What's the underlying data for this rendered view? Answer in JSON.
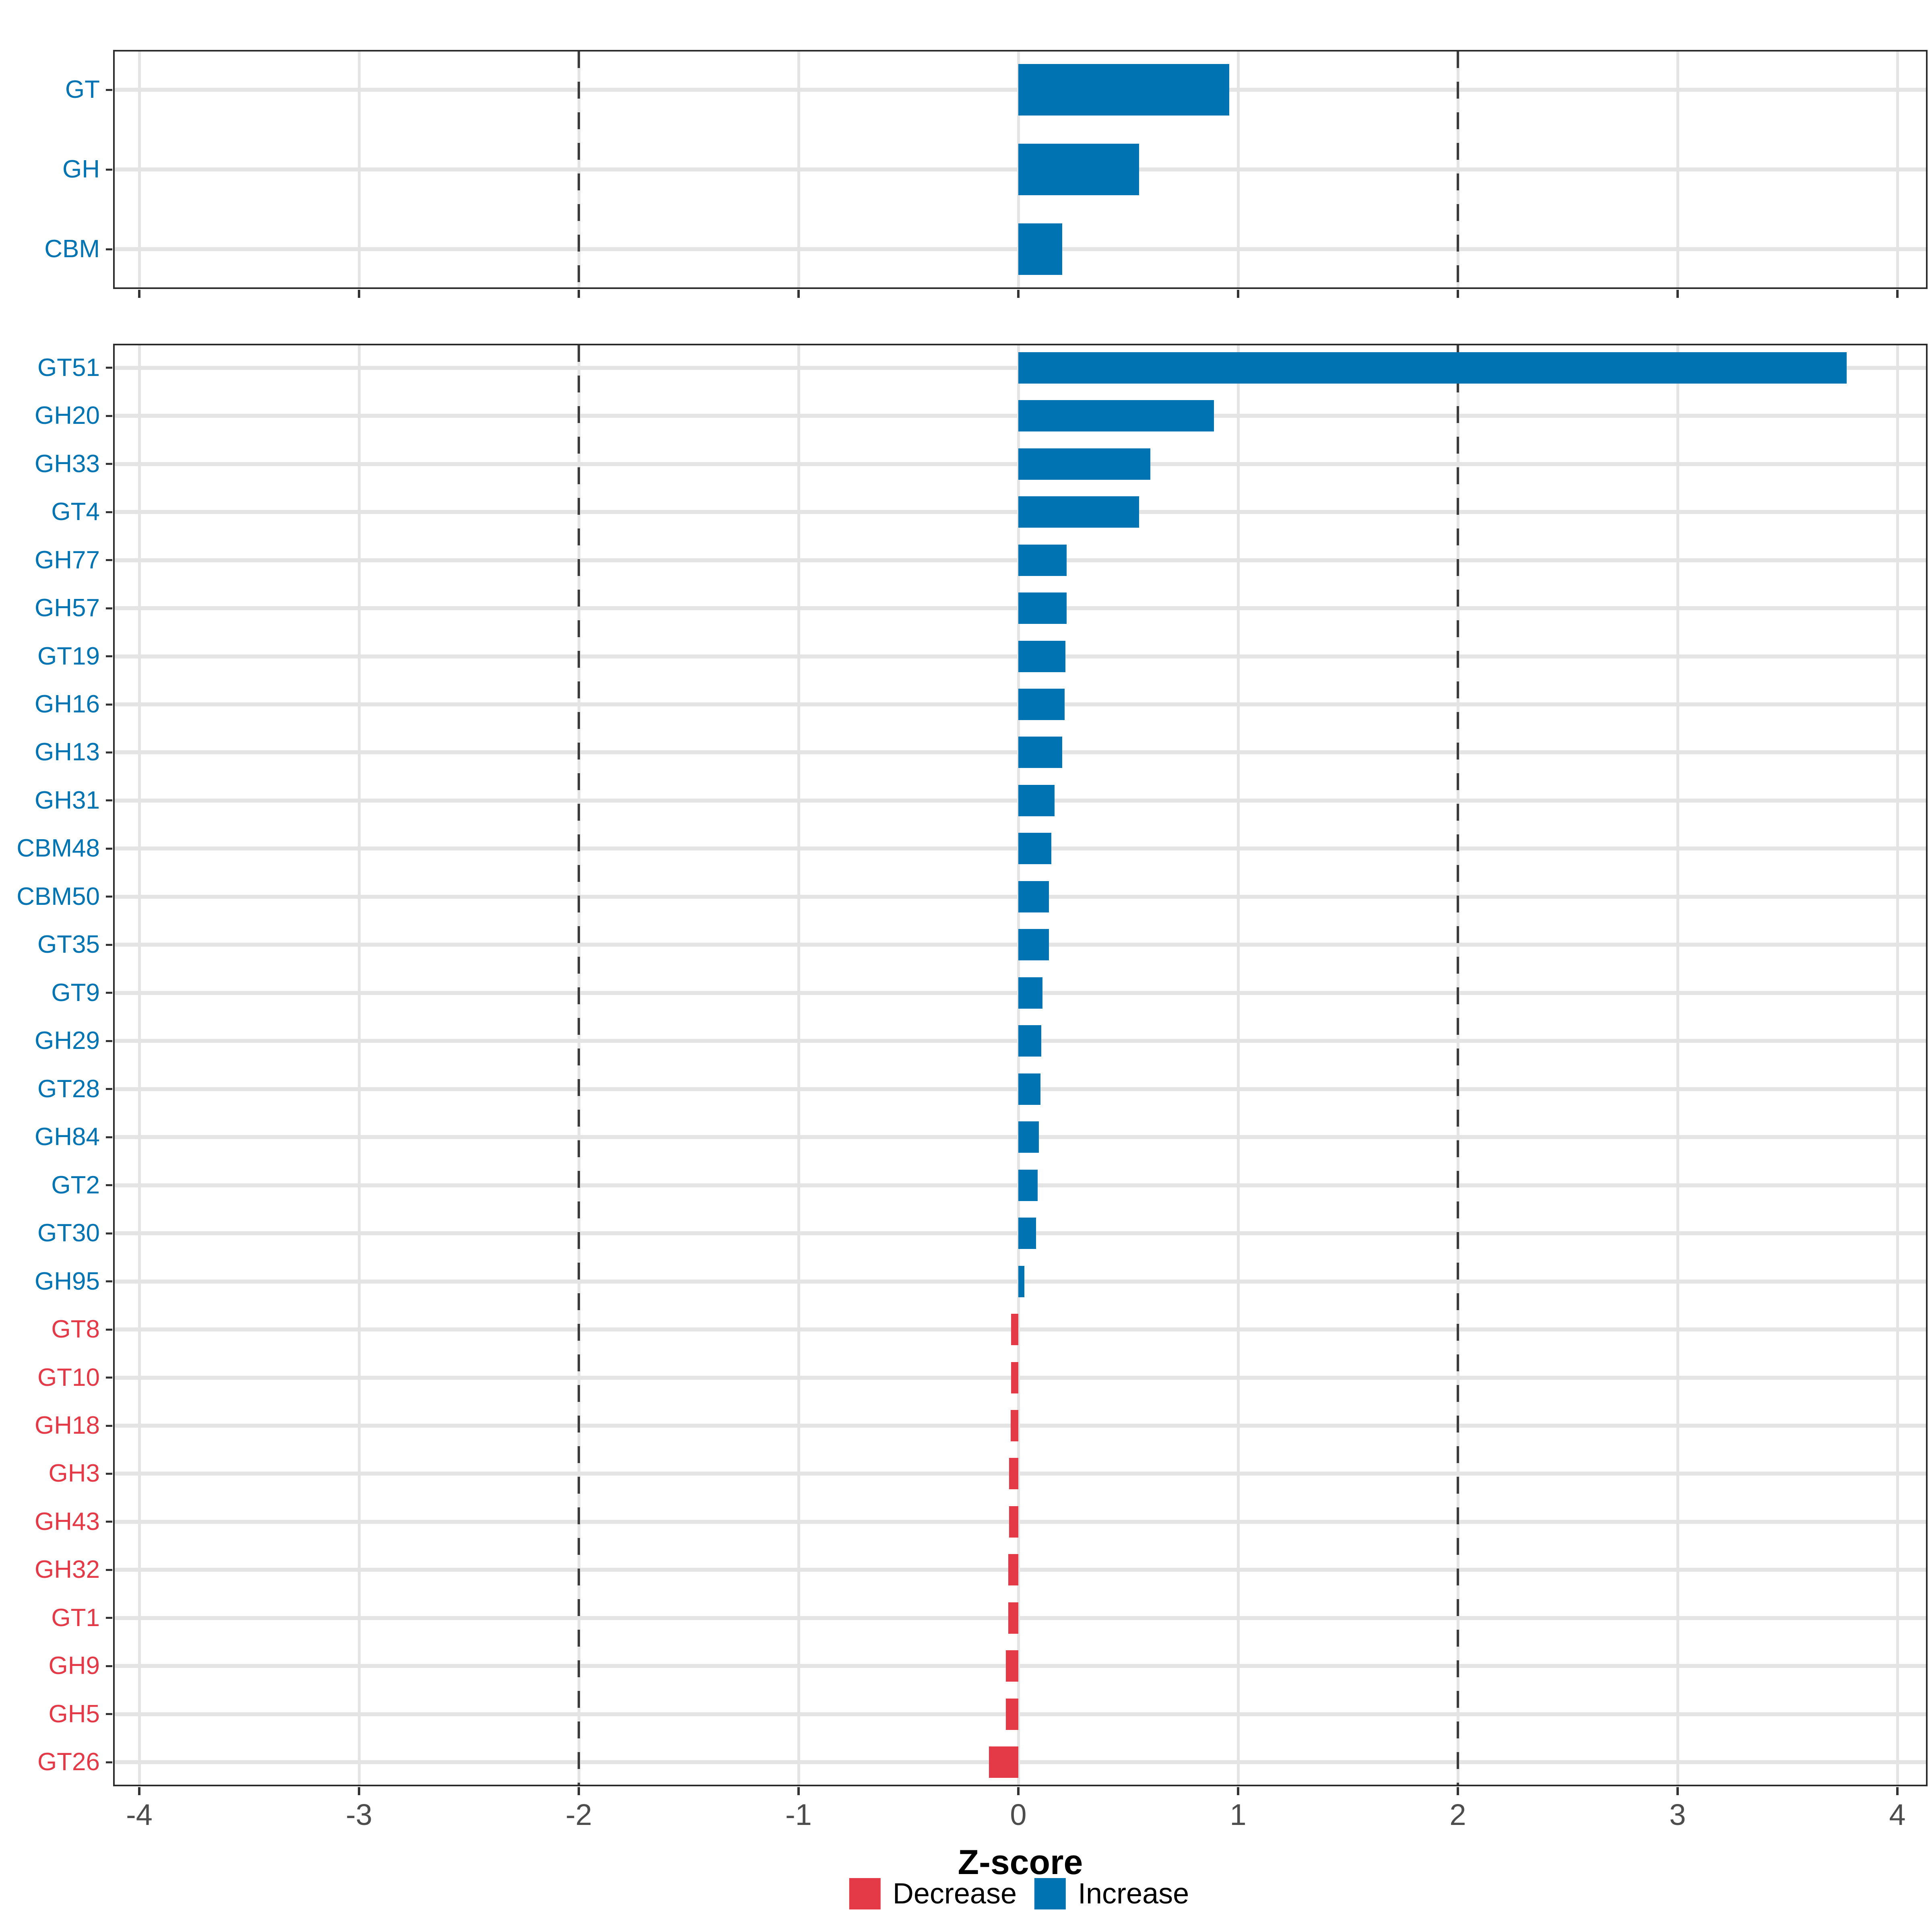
{
  "figure": {
    "background": "#FFFFFF",
    "axis": {
      "title": "Z-score",
      "tick_values": [
        -4,
        -3,
        -2,
        -1,
        0,
        1,
        2,
        3,
        4
      ],
      "tick_labels": [
        "-4",
        "-3",
        "-2",
        "-1",
        "0",
        "1",
        "2",
        "3",
        "4"
      ],
      "range": [
        -4.12,
        4.14
      ],
      "reference_lines": [
        -2,
        2
      ],
      "tick_label_color": "#4D4D4D"
    },
    "legend": {
      "items": [
        {
          "label": "Decrease",
          "color": "#E43A47"
        },
        {
          "label": "Increase",
          "color": "#0073B2"
        }
      ]
    },
    "colors": {
      "increase": "#0073B2",
      "decrease": "#E43A47",
      "grid": "#E4E4E4",
      "panel_border": "#2B2B2B",
      "reference_line": "#3D3D3D",
      "tick_mark": "#333333"
    }
  },
  "chart_data": [
    {
      "type": "bar",
      "orientation": "horizontal",
      "panel": "top",
      "title": "",
      "xlabel": "Z-score",
      "xlim": [
        -4.12,
        4.14
      ],
      "grid": true,
      "legend_position": "bottom",
      "categories": [
        "GT",
        "GH",
        "CBM"
      ],
      "values": [
        0.96,
        0.55,
        0.2
      ],
      "color_rule": "value >= 0 -> Increase (blue #0073B2); value < 0 -> Decrease (red #E43A47); category label colored same as its bar"
    },
    {
      "type": "bar",
      "orientation": "horizontal",
      "panel": "bottom",
      "title": "",
      "xlabel": "Z-score",
      "xlim": [
        -4.12,
        4.14
      ],
      "grid": true,
      "legend_position": "bottom",
      "categories": [
        "GT51",
        "GH20",
        "GH33",
        "GT4",
        "GH77",
        "GH57",
        "GT19",
        "GH16",
        "GH13",
        "GH31",
        "CBM48",
        "CBM50",
        "GT35",
        "GT9",
        "GH29",
        "GT28",
        "GH84",
        "GT2",
        "GT30",
        "GH95",
        "GT8",
        "GT10",
        "GH18",
        "GH3",
        "GH43",
        "GH32",
        "GT1",
        "GH9",
        "GH5",
        "GT26"
      ],
      "values": [
        3.77,
        0.89,
        0.6,
        0.55,
        0.22,
        0.22,
        0.215,
        0.21,
        0.2,
        0.165,
        0.15,
        0.14,
        0.14,
        0.11,
        0.105,
        0.1,
        0.094,
        0.088,
        0.08,
        0.027,
        -0.033,
        -0.033,
        -0.035,
        -0.042,
        -0.042,
        -0.045,
        -0.045,
        -0.056,
        -0.056,
        -0.134
      ],
      "color_rule": "value >= 0 -> Increase (blue #0073B2); value < 0 -> Decrease (red #E43A47); category label colored same as its bar"
    }
  ]
}
